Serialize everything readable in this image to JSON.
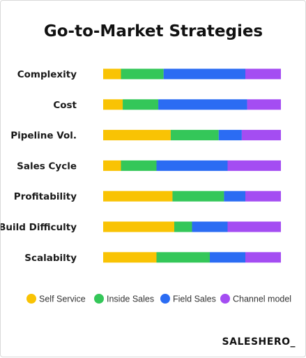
{
  "chart_data": {
    "type": "bar",
    "orientation": "horizontal",
    "stacked": true,
    "normalized": true,
    "title": "Go-to-Market Strategies",
    "categories": [
      "Complexity",
      "Cost",
      "Pipeline Vol.",
      "Sales Cycle",
      "Profitability",
      "Build Difficulty",
      "Scalabilty"
    ],
    "series": [
      {
        "name": "Self Service",
        "color": "#F9C304",
        "values": [
          10,
          11,
          38,
          10,
          39,
          40,
          30
        ]
      },
      {
        "name": "Inside Sales",
        "color": "#34C759",
        "values": [
          24,
          20,
          27,
          20,
          29,
          10,
          30
        ]
      },
      {
        "name": "Field Sales",
        "color": "#2B6CF3",
        "values": [
          46,
          50,
          13,
          40,
          12,
          20,
          20
        ]
      },
      {
        "name": "Channel model",
        "color": "#A44DF2",
        "values": [
          20,
          19,
          22,
          30,
          20,
          30,
          20
        ]
      }
    ],
    "xlim": [
      0,
      100
    ],
    "grid": false,
    "legend": "bottom",
    "xlabel": "",
    "ylabel": ""
  },
  "brand": {
    "name": "SALESHERO_"
  }
}
